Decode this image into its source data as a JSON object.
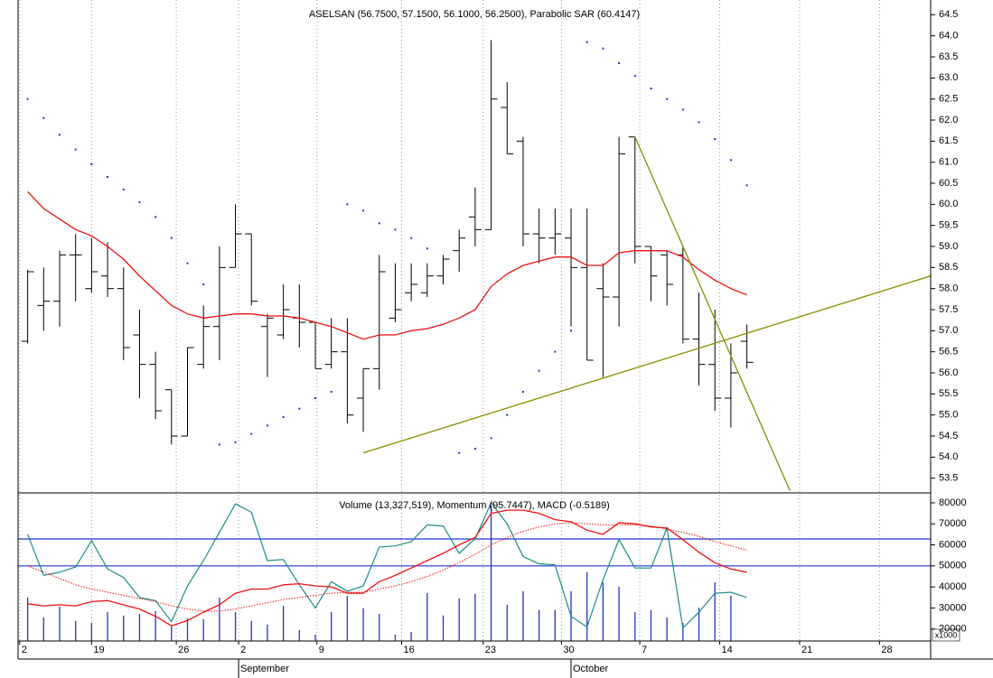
{
  "chart_data": [
    {
      "type": "ohlc",
      "title": "ASELSAN (56.7500, 57.1500, 56.1000, 56.2500), Parabolic SAR (60.4147)",
      "xlim": [
        -0.6,
        56.5
      ],
      "xticks": [
        {
          "value": -0.5,
          "label": "2"
        },
        {
          "value": 4.0,
          "label": "19"
        },
        {
          "value": 9.3,
          "label": "26"
        },
        {
          "value": 13.2,
          "label": "2"
        },
        {
          "value": 18.1,
          "label": "9"
        },
        {
          "value": 23.4,
          "label": "16"
        },
        {
          "value": 28.5,
          "label": "23"
        },
        {
          "value": 33.4,
          "label": "30"
        },
        {
          "value": 38.3,
          "label": "7"
        },
        {
          "value": 43.3,
          "label": "14"
        },
        {
          "value": 48.3,
          "label": "21"
        },
        {
          "value": 53.3,
          "label": "28"
        }
      ],
      "month_labels": [
        {
          "value": 13.2,
          "label": "September"
        },
        {
          "value": 34.0,
          "label": "October"
        }
      ],
      "ylim": [
        53.15,
        64.85
      ],
      "yticks": [
        53.5,
        {
          "value": 54,
          "label": "54.0"
        },
        54.5,
        {
          "value": 55,
          "label": "55.0"
        },
        55.5,
        {
          "value": 56,
          "label": "56.0"
        },
        56.5,
        {
          "value": 57,
          "label": "57.0"
        },
        57.5,
        {
          "value": 58,
          "label": "58.0"
        },
        58.5,
        {
          "value": 59,
          "label": "59.0"
        },
        59.5,
        {
          "value": 60,
          "label": "60.0"
        },
        60.5,
        {
          "value": 61,
          "label": "61.0"
        },
        61.5,
        {
          "value": 62,
          "label": "62.0"
        },
        62.5,
        {
          "value": 63,
          "label": "63.0"
        },
        63.5,
        {
          "value": 64,
          "label": "64.0"
        },
        64.5
      ],
      "bar_color": "#000000",
      "open": [
        56.75,
        57.6,
        57.7,
        58.8,
        58.0,
        58.3,
        58.0,
        56.9,
        56.2,
        55.6,
        54.5,
        56.2,
        57.1,
        58.5,
        59.3,
        57.1,
        56.9,
        57.3,
        57.2,
        56.2,
        56.5,
        55.4,
        56.1,
        57.3,
        57.9,
        57.9,
        58.3,
        58.9,
        59.7,
        59.4,
        62.3,
        61.5,
        59.3,
        59.2,
        59.2,
        58.5,
        58.0,
        57.8,
        61.6,
        59.0,
        58.8,
        58.8,
        56.8,
        56.2,
        55.4,
        56.75
      ],
      "high": [
        58.45,
        58.5,
        58.9,
        59.3,
        59.2,
        59.1,
        58.5,
        57.5,
        56.5,
        55.6,
        56.6,
        57.6,
        59.0,
        60.0,
        59.3,
        57.4,
        58.1,
        58.1,
        57.2,
        57.3,
        57.3,
        56.1,
        58.8,
        58.6,
        58.6,
        58.6,
        58.8,
        59.4,
        60.4,
        63.9,
        62.9,
        61.6,
        59.9,
        59.9,
        59.9,
        59.9,
        58.6,
        61.6,
        61.6,
        59.0,
        58.9,
        59.0,
        57.9,
        57.5,
        56.7,
        57.15
      ],
      "low": [
        56.7,
        57.0,
        57.1,
        57.7,
        57.9,
        57.8,
        56.3,
        55.4,
        54.9,
        54.3,
        54.5,
        56.1,
        56.3,
        58.5,
        57.6,
        55.9,
        56.8,
        56.6,
        56.1,
        56.1,
        54.8,
        54.6,
        55.6,
        57.2,
        57.7,
        57.8,
        58.1,
        58.4,
        59.0,
        59.4,
        61.2,
        59.0,
        58.6,
        58.8,
        57.1,
        56.3,
        55.9,
        57.1,
        58.6,
        57.7,
        57.6,
        56.7,
        55.7,
        55.1,
        54.7,
        56.1
      ],
      "close": [
        58.4,
        57.7,
        58.8,
        58.8,
        58.4,
        58.0,
        56.6,
        56.2,
        55.1,
        54.5,
        56.6,
        57.1,
        58.5,
        59.3,
        57.7,
        57.3,
        57.5,
        57.2,
        56.1,
        56.5,
        55.0,
        56.1,
        58.4,
        57.5,
        58.1,
        58.3,
        58.7,
        59.2,
        59.4,
        62.5,
        61.2,
        59.3,
        59.2,
        59.3,
        58.5,
        56.3,
        57.8,
        61.2,
        59.0,
        58.3,
        58.1,
        56.8,
        56.2,
        55.4,
        56.0,
        56.25
      ],
      "sar": {
        "color": "#2233cc",
        "values": [
          62.5,
          62.05,
          61.65,
          61.3,
          60.95,
          60.65,
          60.35,
          60.05,
          59.7,
          59.2,
          58.6,
          58.1,
          54.3,
          54.35,
          54.55,
          54.75,
          54.95,
          55.15,
          55.4,
          55.55,
          60.0,
          59.85,
          59.55,
          59.4,
          59.2,
          58.95,
          null,
          54.1,
          54.2,
          54.45,
          55.0,
          55.55,
          56.05,
          56.5,
          57.0,
          63.85,
          63.7,
          63.35,
          63.05,
          62.75,
          62.5,
          62.25,
          61.95,
          61.55,
          61.05,
          60.45
        ]
      },
      "average": {
        "color": "#ee1111",
        "values": [
          60.3,
          59.9,
          59.65,
          59.4,
          59.25,
          59.0,
          58.7,
          58.3,
          57.95,
          57.6,
          57.4,
          57.3,
          57.35,
          57.4,
          57.4,
          57.35,
          57.35,
          57.3,
          57.2,
          57.1,
          56.95,
          56.8,
          56.9,
          56.9,
          57.0,
          57.05,
          57.15,
          57.3,
          57.5,
          58.05,
          58.35,
          58.55,
          58.65,
          58.75,
          58.75,
          58.55,
          58.55,
          58.85,
          58.9,
          58.9,
          58.9,
          58.75,
          58.45,
          58.2,
          58.0,
          57.85
        ]
      },
      "trendline_color": "#8b8b00",
      "trendlines": [
        {
          "x": [
            21,
            56.5
          ],
          "y": [
            54.1,
            58.3
          ]
        },
        {
          "x": [
            38,
            47.7
          ],
          "y": [
            61.6,
            53.2
          ]
        }
      ]
    },
    {
      "type": "indicators",
      "title": "Volume (13,327,519), Momentum (95.7447), MACD (-0.5189)",
      "scale_note": "x1000",
      "ylim": [
        14300,
        84700
      ],
      "yticks": [
        20000,
        30000,
        40000,
        50000,
        60000,
        70000,
        80000
      ],
      "levels": {
        "color": "#2233cc",
        "values": [
          62800,
          50000
        ]
      },
      "volume": {
        "color": "#2233cc",
        "values": [
          35000,
          25500,
          30600,
          23800,
          22900,
          28000,
          26400,
          27200,
          28500,
          21600,
          25100,
          24600,
          34900,
          28100,
          23800,
          22100,
          31100,
          19500,
          17300,
          28100,
          35800,
          29900,
          27200,
          17300,
          18600,
          37100,
          26400,
          34500,
          36700,
          78700,
          31500,
          38000,
          29000,
          29000,
          38000,
          47000,
          42200,
          40100,
          28000,
          29000,
          25500,
          22900,
          30200,
          42200,
          35800,
          null
        ]
      },
      "momentum": {
        "color": "#1f8a8a",
        "values": [
          65000,
          45500,
          47000,
          49500,
          62000,
          48500,
          44500,
          35000,
          33500,
          23500,
          40500,
          52500,
          66000,
          79500,
          75500,
          52500,
          53000,
          41000,
          30000,
          42500,
          38000,
          40500,
          59000,
          59500,
          61500,
          69500,
          69000,
          56000,
          63000,
          80000,
          70000,
          54500,
          51000,
          50500,
          26000,
          21000,
          43500,
          62500,
          49000,
          49000,
          68000,
          20500,
          28000,
          37000,
          37500,
          35000
        ]
      },
      "macd": {
        "color": "#ee1111",
        "values": [
          32000,
          31000,
          31500,
          31000,
          33000,
          33500,
          31500,
          29500,
          26000,
          21500,
          24000,
          28000,
          31500,
          37000,
          39000,
          39000,
          41000,
          41500,
          40500,
          40000,
          37000,
          37000,
          42500,
          45500,
          49000,
          52500,
          56000,
          60000,
          63500,
          75000,
          76500,
          76500,
          75000,
          72000,
          71000,
          67000,
          65000,
          70500,
          70000,
          68500,
          68000,
          62500,
          56500,
          51500,
          48500,
          47000
        ]
      },
      "signal": {
        "color": "#ee1111",
        "values": [
          50000,
          47000,
          44000,
          41000,
          39000,
          37500,
          36000,
          34500,
          33000,
          31000,
          29500,
          28500,
          28500,
          29500,
          31000,
          32500,
          34000,
          35000,
          36000,
          37000,
          37500,
          37500,
          39000,
          40500,
          42500,
          45000,
          48000,
          51500,
          55500,
          60000,
          63500,
          66500,
          68500,
          70000,
          70500,
          70000,
          69500,
          69500,
          69500,
          69000,
          67500,
          66000,
          64000,
          61500,
          59500,
          57500
        ]
      }
    }
  ]
}
